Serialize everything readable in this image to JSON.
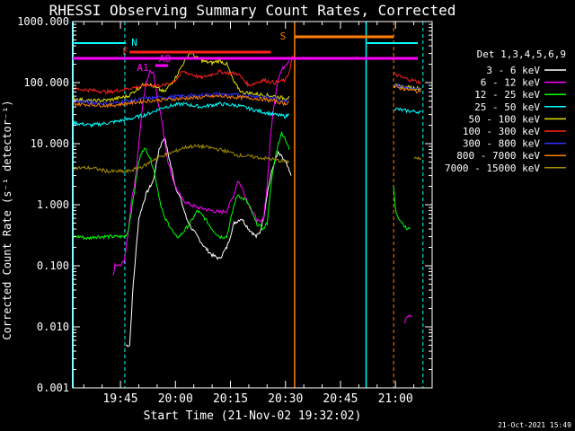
{
  "chart_data": {
    "type": "line",
    "title": "RHESSI Observing Summary Count Rates, Corrected",
    "xlabel": "Start Time (21-Nov-02 19:32:02)",
    "ylabel": "Corrected Count Rate (s⁻¹ detector⁻¹)",
    "yscale": "log",
    "ylim": [
      0.001,
      1000
    ],
    "xlim_minutes_after_start": [
      0,
      98
    ],
    "x_ticks": [
      "19:45",
      "20:00",
      "20:15",
      "20:30",
      "20:45",
      "21:00"
    ],
    "x_tick_minutes": [
      13,
      28,
      43,
      58,
      73,
      88
    ],
    "y_ticks": [
      "0.001",
      "0.010",
      "0.100",
      "1.000",
      "10.000",
      "100.000",
      "1000.000"
    ],
    "y_tick_values": [
      0.001,
      0.01,
      0.1,
      1,
      10,
      100,
      1000
    ],
    "legend": {
      "placement": "right",
      "header": "Det 1,3,4,5,6,9",
      "entries": [
        "3 - 6 keV",
        "6 - 12 keV",
        "12 - 25 keV",
        "25 - 50 keV",
        "50 - 100 keV",
        "100 - 300 keV",
        "300 - 800 keV",
        "800 - 7000 keV",
        "7000 - 15000 keV"
      ]
    },
    "colors": [
      "#ffffff",
      "#ff00ff",
      "#00ff00",
      "#00ffff",
      "#e0e000",
      "#ff2020",
      "#3030ff",
      "#ff8000",
      "#a08c00"
    ],
    "series": [
      {
        "name": "3 - 6 keV",
        "x": [
          14.5,
          15.5,
          16.5,
          18,
          20,
          22,
          23.5,
          25,
          26.5,
          28,
          29.5,
          31,
          32.5,
          34,
          36,
          38,
          40,
          42,
          44,
          46,
          48,
          50,
          51,
          52,
          53,
          54,
          55,
          56,
          57,
          58,
          59.5
        ],
        "y": [
          0.005,
          0.005,
          0.05,
          0.6,
          1.5,
          2.5,
          8,
          13,
          5,
          2,
          1.2,
          0.6,
          0.4,
          0.3,
          0.2,
          0.15,
          0.13,
          0.2,
          0.5,
          0.6,
          0.4,
          0.3,
          0.35,
          0.6,
          1.5,
          3,
          5,
          7,
          6,
          5,
          3
        ]
      },
      {
        "name": "6 - 12 keV",
        "x": [
          11,
          11.5,
          12,
          13,
          14,
          15,
          16,
          17,
          18,
          19,
          20,
          21,
          22,
          23,
          24,
          25,
          26,
          27,
          28,
          29,
          30,
          32,
          34,
          36,
          38,
          40,
          42,
          44,
          45,
          46,
          48,
          50,
          51,
          52,
          53,
          54,
          55,
          56,
          57,
          58,
          59,
          90.5,
          91,
          91.5,
          92.5
        ],
        "y": [
          0.07,
          0.1,
          0.1,
          0.1,
          0.12,
          0.3,
          1.2,
          2.5,
          10,
          40,
          100,
          150,
          150,
          60,
          30,
          12,
          5,
          3,
          2,
          1.5,
          1.2,
          1,
          0.9,
          0.85,
          0.8,
          0.75,
          0.8,
          1.5,
          2.5,
          2,
          1,
          0.6,
          0.5,
          0.6,
          2,
          15,
          50,
          120,
          160,
          200,
          230,
          0.012,
          0.015,
          0.015,
          0.015
        ]
      },
      {
        "name": "12 - 25 keV",
        "x": [
          0,
          2,
          4,
          6,
          8,
          10,
          12,
          13,
          14,
          15,
          16,
          17,
          18,
          19,
          20,
          21,
          22,
          23,
          24,
          25,
          26,
          27,
          28,
          29,
          30,
          32,
          34,
          36,
          38,
          40,
          42,
          44,
          45,
          46,
          47,
          48,
          50,
          52,
          53,
          54,
          55,
          56,
          57,
          58,
          59,
          87.5,
          88,
          89,
          90,
          91,
          92
        ],
        "y": [
          0.3,
          0.3,
          0.28,
          0.3,
          0.3,
          0.3,
          0.3,
          0.3,
          0.3,
          0.35,
          0.8,
          2,
          5,
          8,
          8,
          6,
          4,
          2,
          1,
          0.6,
          0.5,
          0.4,
          0.3,
          0.3,
          0.35,
          0.5,
          0.8,
          0.6,
          0.4,
          0.3,
          0.3,
          1,
          1.5,
          1.3,
          1.2,
          1,
          0.5,
          0.4,
          0.5,
          2,
          5,
          10,
          15,
          12,
          8,
          2,
          0.8,
          0.6,
          0.5,
          0.4,
          0.4
        ]
      },
      {
        "name": "25 - 50 keV",
        "x": [
          0,
          5,
          10,
          15,
          20,
          25,
          30,
          35,
          40,
          45,
          50,
          55,
          58,
          59,
          87.5,
          90,
          95
        ],
        "y": [
          22,
          20,
          22,
          25,
          30,
          40,
          45,
          40,
          45,
          42,
          35,
          30,
          28,
          30,
          38,
          35,
          33
        ]
      },
      {
        "name": "50 - 100 keV",
        "x": [
          0,
          5,
          10,
          15,
          20,
          25,
          28,
          30,
          32,
          34,
          36,
          38,
          40,
          42,
          44,
          46,
          50,
          55,
          58,
          59,
          87.5,
          90,
          95
        ],
        "y": [
          55,
          50,
          52,
          60,
          100,
          70,
          120,
          200,
          320,
          250,
          220,
          210,
          230,
          200,
          100,
          70,
          65,
          60,
          55,
          60,
          90,
          85,
          80
        ]
      },
      {
        "name": "100 - 300 keV",
        "x": [
          0,
          5,
          10,
          15,
          20,
          25,
          28,
          30,
          32,
          35,
          40,
          45,
          48,
          50,
          52,
          55,
          58,
          59,
          60,
          87.5,
          90,
          95
        ],
        "y": [
          80,
          75,
          70,
          80,
          90,
          90,
          110,
          150,
          140,
          120,
          150,
          140,
          90,
          100,
          110,
          100,
          110,
          150,
          280,
          140,
          120,
          100
        ]
      },
      {
        "name": "300 - 800 keV",
        "x": [
          0,
          10,
          20,
          30,
          40,
          50,
          55,
          58,
          59,
          87.5,
          90,
          95
        ],
        "y": [
          50,
          45,
          55,
          60,
          65,
          60,
          55,
          50,
          55,
          95,
          85,
          75
        ]
      },
      {
        "name": "800 - 7000 keV",
        "x": [
          0,
          10,
          20,
          30,
          40,
          50,
          55,
          58,
          59,
          87.5,
          90,
          95
        ],
        "y": [
          45,
          42,
          50,
          55,
          60,
          55,
          50,
          45,
          50,
          85,
          80,
          70
        ]
      },
      {
        "name": "7000 - 15000 keV",
        "x": [
          0,
          5,
          10,
          15,
          18,
          20,
          22,
          25,
          28,
          30,
          32,
          35,
          38,
          40,
          42,
          45,
          50,
          55,
          58,
          59,
          93,
          95
        ],
        "y": [
          4,
          4,
          3.5,
          3.5,
          4,
          4.5,
          5.5,
          6.5,
          7.5,
          8.5,
          9,
          9,
          8.5,
          8,
          7.5,
          6.5,
          6,
          5.5,
          5,
          5,
          6,
          5.5
        ]
      }
    ],
    "annotations": [
      {
        "label": "N",
        "color": "#00ffff"
      },
      {
        "label": "F",
        "color": "#ff2020"
      },
      {
        "label": "S",
        "color": "#ff8000"
      },
      {
        "label": "A1",
        "color": "#ff00ff"
      },
      {
        "label": "A0",
        "color": "#ff00ff"
      }
    ],
    "footer_date": "21-Oct-2021 15:49"
  }
}
